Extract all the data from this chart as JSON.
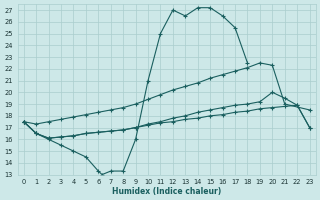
{
  "xlabel": "Humidex (Indice chaleur)",
  "xlim": [
    -0.5,
    23.5
  ],
  "ylim": [
    13,
    27.5
  ],
  "xticks": [
    0,
    1,
    2,
    3,
    4,
    5,
    6,
    7,
    8,
    9,
    10,
    11,
    12,
    13,
    14,
    15,
    16,
    17,
    18,
    19,
    20,
    21,
    22,
    23
  ],
  "yticks": [
    13,
    14,
    15,
    16,
    17,
    18,
    19,
    20,
    21,
    22,
    23,
    24,
    25,
    26,
    27
  ],
  "bg_color": "#cde8e8",
  "grid_color": "#aacece",
  "line_color": "#1a5f5f",
  "line1_x": [
    0,
    1,
    2,
    3,
    4,
    5,
    6,
    6.3,
    7,
    8,
    9,
    10,
    11,
    12,
    13,
    14,
    15,
    16,
    17,
    18
  ],
  "line1_y": [
    17.5,
    16.5,
    16.0,
    15.5,
    15.0,
    14.5,
    13.3,
    13.0,
    13.3,
    13.3,
    16.0,
    21.0,
    25.0,
    27.0,
    26.5,
    27.2,
    27.2,
    26.5,
    25.5,
    22.5
  ],
  "line2_x": [
    0,
    1,
    2,
    3,
    4,
    5,
    6,
    7,
    8,
    9,
    10,
    11,
    12,
    13,
    14,
    15,
    16,
    17,
    18,
    19,
    20,
    21,
    23
  ],
  "line2_y": [
    17.5,
    17.3,
    17.5,
    17.7,
    17.9,
    18.1,
    18.3,
    18.5,
    18.7,
    19.0,
    19.4,
    19.8,
    20.2,
    20.5,
    20.8,
    21.2,
    21.5,
    21.8,
    22.1,
    22.5,
    22.3,
    19.0,
    18.5
  ],
  "line3_x": [
    0,
    1,
    2,
    3,
    4,
    5,
    6,
    7,
    8,
    9,
    10,
    11,
    12,
    13,
    14,
    15,
    16,
    17,
    18,
    19,
    20,
    21,
    22,
    23
  ],
  "line3_y": [
    17.5,
    16.5,
    16.1,
    16.2,
    16.3,
    16.5,
    16.6,
    16.7,
    16.8,
    17.0,
    17.3,
    17.5,
    17.8,
    18.0,
    18.3,
    18.5,
    18.7,
    18.9,
    19.0,
    19.2,
    20.0,
    19.5,
    18.9,
    17.0
  ],
  "line4_x": [
    0,
    1,
    2,
    3,
    4,
    5,
    6,
    7,
    8,
    9,
    10,
    11,
    12,
    13,
    14,
    15,
    16,
    17,
    18,
    19,
    20,
    21,
    22,
    23
  ],
  "line4_y": [
    17.5,
    16.5,
    16.1,
    16.2,
    16.3,
    16.5,
    16.6,
    16.7,
    16.8,
    17.0,
    17.2,
    17.4,
    17.5,
    17.7,
    17.8,
    18.0,
    18.1,
    18.3,
    18.4,
    18.6,
    18.7,
    18.8,
    18.9,
    17.0
  ]
}
